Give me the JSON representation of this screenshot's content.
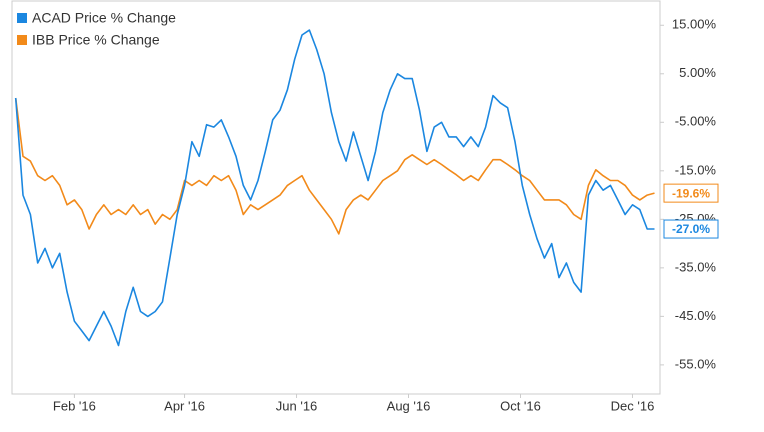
{
  "chart_data": {
    "type": "line",
    "x": [
      0,
      4,
      8,
      12,
      16,
      20,
      24,
      28,
      32,
      36,
      40,
      44,
      48,
      52,
      56,
      60,
      64,
      68,
      72,
      76,
      80,
      84,
      88,
      92,
      96,
      100,
      104,
      108,
      112,
      116,
      120,
      124,
      128,
      132,
      136,
      140,
      144,
      148,
      152,
      156,
      160,
      164,
      168,
      172,
      176,
      180,
      184,
      188,
      192,
      196,
      200,
      204,
      208,
      212,
      216,
      220,
      224,
      228,
      232,
      236,
      240,
      244,
      248,
      252,
      256,
      260,
      264,
      268,
      272,
      276,
      280,
      284,
      288,
      292,
      296,
      300,
      304,
      308,
      312,
      316,
      320,
      324,
      328,
      332,
      336,
      340,
      344,
      348
    ],
    "xlim": [
      -2,
      351
    ],
    "xticks": [
      {
        "value": 32,
        "label": "Feb '16"
      },
      {
        "value": 92,
        "label": "Apr '16"
      },
      {
        "value": 153,
        "label": "Jun '16"
      },
      {
        "value": 214,
        "label": "Aug '16"
      },
      {
        "value": 275,
        "label": "Oct '16"
      },
      {
        "value": 336,
        "label": "Dec '16"
      }
    ],
    "ylim": [
      -61,
      20
    ],
    "yticks": [
      {
        "value": 15,
        "label": "15.00%"
      },
      {
        "value": 5,
        "label": "5.00%"
      },
      {
        "value": -5,
        "label": "-5.00%"
      },
      {
        "value": -15,
        "label": "-15.0%"
      },
      {
        "value": -25,
        "label": "-25.0%"
      },
      {
        "value": -35,
        "label": "-35.0%"
      },
      {
        "value": -45,
        "label": "-45.0%"
      },
      {
        "value": -55,
        "label": "-55.0%"
      }
    ],
    "grid": false,
    "legend": "top-left",
    "series": [
      {
        "name": "ACAD Price % Change",
        "color": "#1b87e0",
        "last_label": "-27.0%",
        "values": [
          0,
          -20,
          -24,
          -34,
          -31,
          -35,
          -32,
          -40,
          -46,
          -48,
          -50,
          -47,
          -44,
          -47,
          -51,
          -44,
          -39,
          -44,
          -45,
          -44,
          -42,
          -33,
          -24,
          -18,
          -9,
          -12,
          -5.5,
          -6,
          -4.5,
          -8,
          -12,
          -18,
          -21,
          -17,
          -11,
          -4.5,
          -2.5,
          1.7,
          8,
          13,
          14,
          10,
          5,
          -3,
          -9,
          -13,
          -7,
          -12,
          -17,
          -11,
          -3,
          1.7,
          5,
          4,
          4,
          -2.5,
          -11,
          -6,
          -5,
          -8,
          -8,
          -10,
          -8,
          -10,
          -6,
          0.5,
          -1,
          -2,
          -9,
          -18,
          -24,
          -29,
          -33,
          -30,
          -37,
          -34,
          -38,
          -40,
          -20,
          -17,
          -19,
          -18,
          -21,
          -24,
          -22,
          -23,
          -27,
          -27
        ]
      },
      {
        "name": "IBB Price % Change",
        "color": "#f28a1a",
        "last_label": "-19.6%",
        "values": [
          0,
          -12,
          -13,
          -16,
          -17,
          -16,
          -18,
          -22,
          -21,
          -23,
          -27,
          -24,
          -22,
          -24,
          -23,
          -24,
          -22,
          -24,
          -23,
          -26,
          -24,
          -25,
          -23,
          -17,
          -18,
          -17,
          -18,
          -16,
          -17,
          -16,
          -19,
          -24,
          -22,
          -23,
          -22,
          -21,
          -20,
          -18,
          -17,
          -16,
          -19,
          -21,
          -23,
          -25,
          -28,
          -23,
          -21,
          -20,
          -21,
          -19,
          -17,
          -16,
          -15,
          -12.7,
          -11.7,
          -12.7,
          -13.7,
          -12.7,
          -13.7,
          -14.8,
          -15.8,
          -17,
          -16,
          -17,
          -14.8,
          -12.7,
          -12.7,
          -13.7,
          -14.8,
          -16,
          -17,
          -19,
          -21,
          -21,
          -21,
          -22,
          -24,
          -25,
          -18,
          -14.8,
          -16,
          -17,
          -17,
          -18,
          -20,
          -21,
          -20,
          -19.6
        ]
      }
    ]
  }
}
